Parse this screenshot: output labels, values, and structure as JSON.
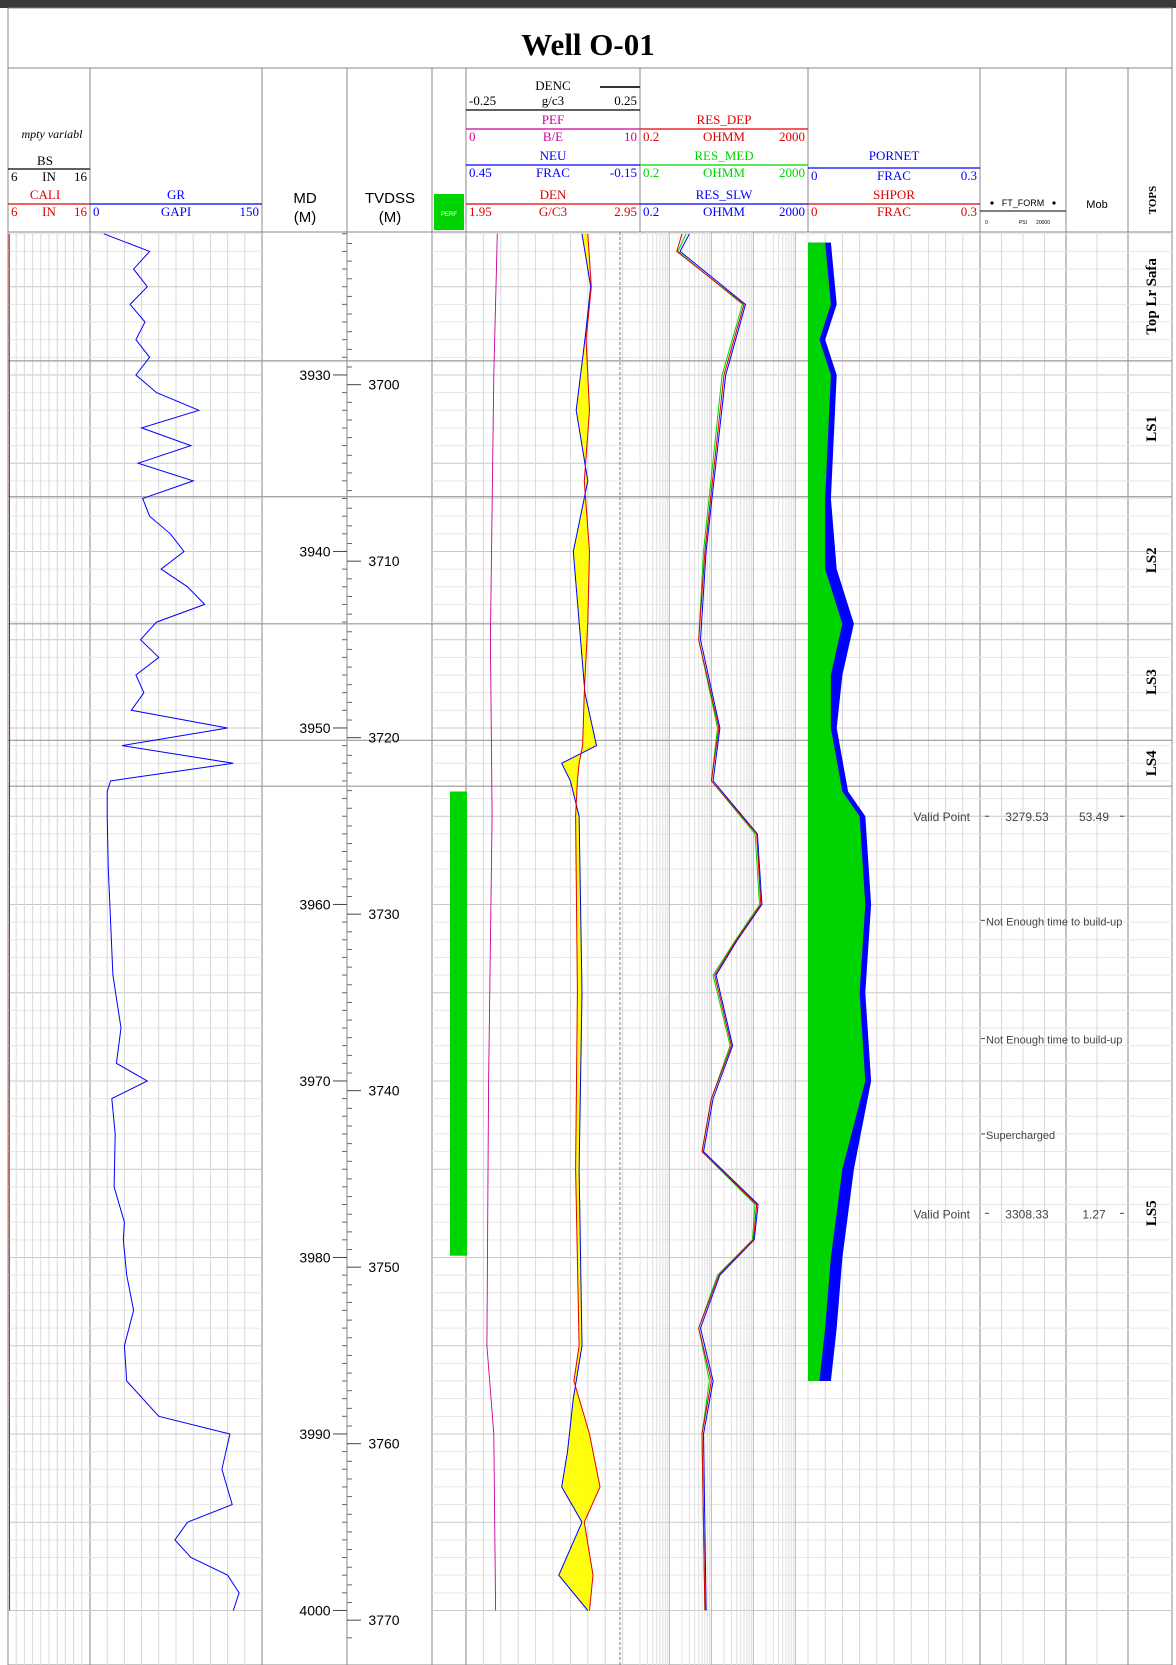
{
  "title": "Well O-01",
  "colors": {
    "red": "#e00000",
    "blue": "#0000ff",
    "green": "#00d400",
    "magenta": "#cc0099",
    "yellow": "#ffff00",
    "gray": "#777777",
    "dark": "#333333"
  },
  "headers": {
    "cali": {
      "partial": "mpty variabl",
      "bs": "BS",
      "bs_scale": [
        "6",
        "IN",
        "16"
      ],
      "cali": "CALI",
      "cali_scale": [
        "6",
        "IN",
        "16"
      ]
    },
    "gr": {
      "name": "GR",
      "scale": [
        "0",
        "GAPI",
        "150"
      ]
    },
    "md": {
      "name": "MD",
      "unit": "(M)"
    },
    "tvdss": {
      "name": "TVDSS",
      "unit": "(M)"
    },
    "perf": {
      "name": "PERF"
    },
    "den": {
      "denc": "DENC",
      "denc_scale": [
        "-0.25",
        "g/c3",
        "0.25"
      ],
      "pef": "PEF",
      "pef_scale": [
        "0",
        "B/E",
        "10"
      ],
      "neu": "NEU",
      "neu_scale": [
        "0.45",
        "FRAC",
        "-0.15"
      ],
      "den": "DEN",
      "den_scale": [
        "1.95",
        "G/C3",
        "2.95"
      ]
    },
    "res": {
      "dep": "RES_DEP",
      "med": "RES_MED",
      "slw": "RES_SLW",
      "scale": [
        "0.2",
        "OHMM",
        "2000"
      ]
    },
    "por": {
      "pornet": "PORNET",
      "shpor": "SHPOR",
      "scale": [
        "0",
        "FRAC",
        "0.3"
      ]
    },
    "ft": {
      "name": "FT_FORM",
      "scale": [
        "0",
        "PSI",
        "20000"
      ]
    },
    "mob": {
      "name": "Mob"
    },
    "tops": {
      "name": "TOPS"
    }
  },
  "chart_data": {
    "type": "line",
    "title": "Well O-01",
    "depth_axis": {
      "md_range": [
        3921.9,
        4000.5
      ],
      "md_ticks": [
        3930,
        3940,
        3950,
        3960,
        3970,
        3980,
        3990,
        4000
      ],
      "tvdss_ticks": [
        3700,
        3710,
        3720,
        3730,
        3740,
        3750,
        3760,
        3770
      ]
    },
    "tops": [
      {
        "name": "Top Lr Safa",
        "md_top": 3921.9,
        "md_base": 3929.2
      },
      {
        "name": "LS1",
        "md_top": 3929.2,
        "md_base": 3936.9
      },
      {
        "name": "LS2",
        "md_top": 3936.9,
        "md_base": 3944.1
      },
      {
        "name": "LS3",
        "md_top": 3944.1,
        "md_base": 3950.7
      },
      {
        "name": "LS4",
        "md_top": 3950.7,
        "md_base": 3953.3
      },
      {
        "name": "LS5",
        "md_top": 3953.3,
        "md_base": 4000.5
      }
    ],
    "perforation": {
      "md_top": 3953.6,
      "md_base": 3979.9
    },
    "formation_tests": [
      {
        "md": 3955.0,
        "status": "Valid Point",
        "pressure_psi": "3279.53",
        "mobility": "53.49"
      },
      {
        "md": 3960.9,
        "status": "Not Enough time to build-up",
        "pressure_psi": "",
        "mobility": ""
      },
      {
        "md": 3967.6,
        "status": "Not Enough time to build-up",
        "pressure_psi": "",
        "mobility": ""
      },
      {
        "md": 3973.0,
        "status": "Supercharged",
        "pressure_psi": "",
        "mobility": ""
      },
      {
        "md": 3977.5,
        "status": "Valid Point",
        "pressure_psi": "3308.33",
        "mobility": "1.27"
      }
    ],
    "curves": {
      "GR": {
        "unit": "GAPI",
        "range": [
          0,
          150
        ],
        "points": [
          [
            3922,
            12
          ],
          [
            3923,
            52
          ],
          [
            3924,
            38
          ],
          [
            3925,
            50
          ],
          [
            3926,
            35
          ],
          [
            3927,
            48
          ],
          [
            3928,
            40
          ],
          [
            3929,
            52
          ],
          [
            3930,
            40
          ],
          [
            3931,
            58
          ],
          [
            3932,
            95
          ],
          [
            3933,
            45
          ],
          [
            3934,
            88
          ],
          [
            3935,
            42
          ],
          [
            3936,
            90
          ],
          [
            3937,
            46
          ],
          [
            3938,
            52
          ],
          [
            3939,
            70
          ],
          [
            3940,
            82
          ],
          [
            3941,
            62
          ],
          [
            3942,
            85
          ],
          [
            3943,
            100
          ],
          [
            3944,
            58
          ],
          [
            3945,
            44
          ],
          [
            3946,
            60
          ],
          [
            3947,
            40
          ],
          [
            3948,
            47
          ],
          [
            3949,
            36
          ],
          [
            3950,
            120
          ],
          [
            3951,
            28
          ],
          [
            3952,
            125
          ],
          [
            3953,
            18
          ],
          [
            3953.6,
            15
          ],
          [
            3955,
            15
          ],
          [
            3958,
            16
          ],
          [
            3961,
            18
          ],
          [
            3964,
            20
          ],
          [
            3967,
            27
          ],
          [
            3969,
            23
          ],
          [
            3970,
            50
          ],
          [
            3971,
            19
          ],
          [
            3973,
            22
          ],
          [
            3976,
            21
          ],
          [
            3978,
            30
          ],
          [
            3979,
            29
          ],
          [
            3981,
            32
          ],
          [
            3983,
            38
          ],
          [
            3985,
            30
          ],
          [
            3987,
            32
          ],
          [
            3989,
            60
          ],
          [
            3990,
            122
          ],
          [
            3992,
            115
          ],
          [
            3994,
            124
          ],
          [
            3995,
            85
          ],
          [
            3996,
            74
          ],
          [
            3997,
            88
          ],
          [
            3998,
            120
          ],
          [
            3999,
            130
          ],
          [
            4000,
            125
          ]
        ]
      },
      "CALI": {
        "unit": "IN",
        "range": [
          6,
          16
        ],
        "points": [
          [
            3922,
            6.15
          ],
          [
            3950,
            6.2
          ],
          [
            3975,
            6.15
          ],
          [
            4000,
            6.2
          ]
        ]
      },
      "PEF": {
        "unit": "B/E",
        "range": [
          0,
          10
        ],
        "points": [
          [
            3922,
            1.8
          ],
          [
            3930,
            1.6
          ],
          [
            3945,
            1.4
          ],
          [
            3955,
            1.5
          ],
          [
            3970,
            1.3
          ],
          [
            3985,
            1.2
          ],
          [
            3990,
            1.6
          ],
          [
            4000,
            1.7
          ]
        ]
      },
      "NEU": {
        "unit": "FRAC",
        "range": [
          0.45,
          -0.15
        ],
        "points": [
          [
            3922,
            0.05
          ],
          [
            3925,
            0.02
          ],
          [
            3928,
            0.04
          ],
          [
            3932,
            0.07
          ],
          [
            3936,
            0.03
          ],
          [
            3940,
            0.08
          ],
          [
            3944,
            0.06
          ],
          [
            3948,
            0.04
          ],
          [
            3951,
            0.0
          ],
          [
            3952,
            0.12
          ],
          [
            3953,
            0.09
          ],
          [
            3955,
            0.06
          ],
          [
            3965,
            0.05
          ],
          [
            3975,
            0.06
          ],
          [
            3985,
            0.05
          ],
          [
            3988,
            0.08
          ],
          [
            3991,
            0.1
          ],
          [
            3993,
            0.12
          ],
          [
            3995,
            0.05
          ],
          [
            3998,
            0.13
          ],
          [
            4000,
            0.03
          ]
        ]
      },
      "DEN": {
        "unit": "G/C3",
        "range": [
          1.95,
          2.95
        ],
        "points": [
          [
            3922,
            2.65
          ],
          [
            3925,
            2.67
          ],
          [
            3928,
            2.64
          ],
          [
            3932,
            2.66
          ],
          [
            3936,
            2.63
          ],
          [
            3940,
            2.66
          ],
          [
            3944,
            2.65
          ],
          [
            3948,
            2.63
          ],
          [
            3951,
            2.62
          ],
          [
            3952,
            2.6
          ],
          [
            3953,
            2.59
          ],
          [
            3955,
            2.58
          ],
          [
            3965,
            2.59
          ],
          [
            3975,
            2.58
          ],
          [
            3985,
            2.6
          ],
          [
            3987,
            2.57
          ],
          [
            3990,
            2.66
          ],
          [
            3993,
            2.72
          ],
          [
            3995,
            2.63
          ],
          [
            3998,
            2.68
          ],
          [
            4000,
            2.66
          ]
        ]
      },
      "RES_DEP": {
        "unit": "OHMM",
        "range": [
          0.2,
          2000
        ],
        "scale": "log",
        "points": [
          [
            3922,
            2
          ],
          [
            3923,
            1.5
          ],
          [
            3926,
            60
          ],
          [
            3930,
            20
          ],
          [
            3940,
            7
          ],
          [
            3945,
            5
          ],
          [
            3950,
            15
          ],
          [
            3953,
            10
          ],
          [
            3956,
            120
          ],
          [
            3960,
            150
          ],
          [
            3962,
            40
          ],
          [
            3964,
            12
          ],
          [
            3968,
            30
          ],
          [
            3971,
            10
          ],
          [
            3974,
            6
          ],
          [
            3977,
            120
          ],
          [
            3979,
            100
          ],
          [
            3981,
            15
          ],
          [
            3984,
            5
          ],
          [
            3987,
            10
          ],
          [
            3990,
            6
          ],
          [
            4000,
            7
          ]
        ]
      },
      "RES_MED": {
        "unit": "OHMM",
        "range": [
          0.2,
          2000
        ],
        "scale": "log",
        "points": [
          [
            3922,
            2.5
          ],
          [
            3923,
            1.6
          ],
          [
            3926,
            55
          ],
          [
            3930,
            18
          ],
          [
            3940,
            6.5
          ],
          [
            3945,
            5
          ],
          [
            3950,
            14
          ],
          [
            3953,
            10
          ],
          [
            3956,
            110
          ],
          [
            3960,
            140
          ],
          [
            3962,
            38
          ],
          [
            3964,
            11
          ],
          [
            3968,
            28
          ],
          [
            3971,
            10
          ],
          [
            3974,
            6
          ],
          [
            3977,
            110
          ],
          [
            3979,
            95
          ],
          [
            3981,
            14
          ],
          [
            3984,
            5
          ],
          [
            3987,
            9
          ],
          [
            3990,
            6
          ],
          [
            4000,
            7
          ]
        ]
      },
      "RES_SLW": {
        "unit": "OHMM",
        "range": [
          0.2,
          2000
        ],
        "scale": "log",
        "points": [
          [
            3922,
            3
          ],
          [
            3923,
            1.8
          ],
          [
            3926,
            65
          ],
          [
            3930,
            22
          ],
          [
            3940,
            7.5
          ],
          [
            3945,
            5.5
          ],
          [
            3950,
            16
          ],
          [
            3953,
            11
          ],
          [
            3956,
            125
          ],
          [
            3960,
            160
          ],
          [
            3962,
            42
          ],
          [
            3964,
            13
          ],
          [
            3968,
            32
          ],
          [
            3971,
            11
          ],
          [
            3974,
            6.5
          ],
          [
            3977,
            130
          ],
          [
            3979,
            105
          ],
          [
            3981,
            16
          ],
          [
            3984,
            5.5
          ],
          [
            3987,
            11
          ],
          [
            3990,
            6.5
          ],
          [
            4000,
            7.5
          ]
        ]
      },
      "PORNET": {
        "unit": "FRAC",
        "range": [
          0,
          0.3
        ],
        "points": [
          [
            3922.5,
            0.04
          ],
          [
            3926,
            0.05
          ],
          [
            3928,
            0.03
          ],
          [
            3930,
            0.05
          ],
          [
            3937,
            0.04
          ],
          [
            3941,
            0.05
          ],
          [
            3944.1,
            0.08
          ],
          [
            3947,
            0.06
          ],
          [
            3950,
            0.05
          ],
          [
            3953.6,
            0.07
          ],
          [
            3955,
            0.1
          ],
          [
            3960,
            0.11
          ],
          [
            3965,
            0.1
          ],
          [
            3970,
            0.11
          ],
          [
            3975,
            0.08
          ],
          [
            3980,
            0.06
          ],
          [
            3984,
            0.05
          ],
          [
            3987,
            0.04
          ]
        ]
      },
      "SHPOR": {
        "unit": "FRAC",
        "range": [
          0,
          0.3
        ],
        "points": [
          [
            3922.5,
            0.03
          ],
          [
            3926,
            0.04
          ],
          [
            3928,
            0.02
          ],
          [
            3930,
            0.04
          ],
          [
            3937,
            0.03
          ],
          [
            3941,
            0.03
          ],
          [
            3944.1,
            0.06
          ],
          [
            3947,
            0.04
          ],
          [
            3950,
            0.04
          ],
          [
            3953.6,
            0.06
          ],
          [
            3955,
            0.09
          ],
          [
            3960,
            0.1
          ],
          [
            3965,
            0.09
          ],
          [
            3970,
            0.1
          ],
          [
            3975,
            0.06
          ],
          [
            3980,
            0.04
          ],
          [
            3984,
            0.03
          ],
          [
            3987,
            0.02
          ]
        ]
      }
    }
  }
}
